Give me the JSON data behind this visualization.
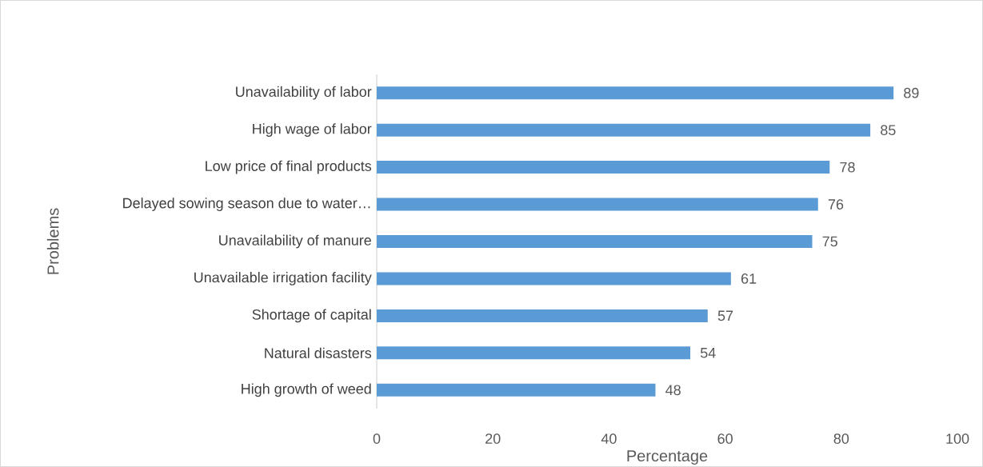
{
  "chart_data": {
    "type": "bar",
    "orientation": "horizontal",
    "xlabel": "Percentage",
    "ylabel": "Problems",
    "categories": [
      "Unavailability of labor",
      "High wage of labor",
      "Low price of final products",
      "Delayed sowing season due to water…",
      "Unavailability of manure",
      "Unavailable irrigation facility",
      "Shortage of capital",
      "Natural disasters",
      "High growth of weed"
    ],
    "values": [
      89,
      85,
      78,
      76,
      75,
      61,
      57,
      54,
      48
    ],
    "color": "#5b9bd5",
    "xlim": [
      0,
      100
    ],
    "xticks": [
      0,
      20,
      40,
      60,
      80,
      100
    ],
    "data_labels": true
  }
}
